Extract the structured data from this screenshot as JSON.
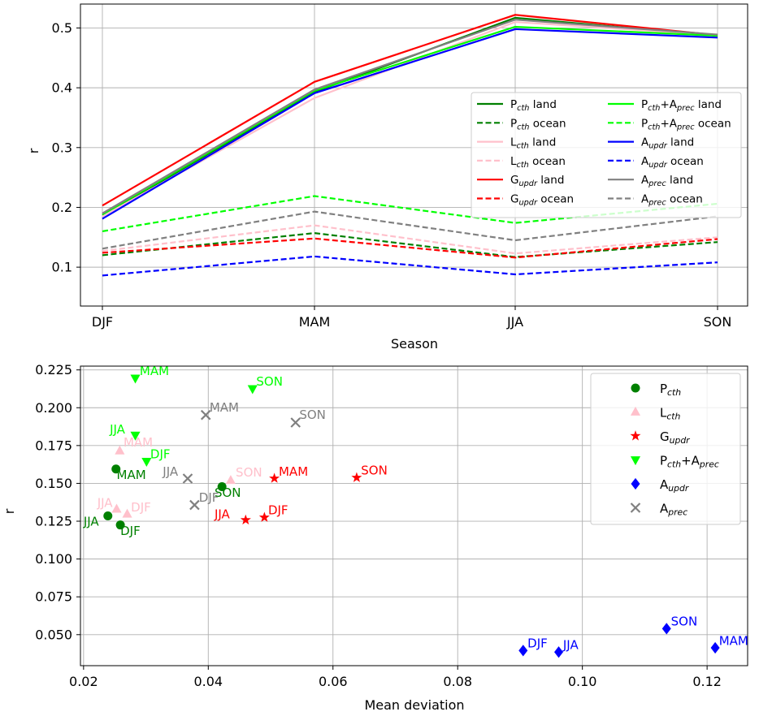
{
  "chart_data": [
    {
      "type": "line",
      "xlabel": "Season",
      "ylabel": "r",
      "categories": [
        "DJF",
        "MAM",
        "JJA",
        "SON"
      ],
      "ylim": [
        0.035,
        0.54
      ],
      "yticks": [
        "0.1",
        "0.2",
        "0.3",
        "0.4",
        "0.5"
      ],
      "ytick_values": [
        0.1,
        0.2,
        0.3,
        0.4,
        0.5
      ],
      "grid": true,
      "legend_position": "right, inside plot",
      "series": [
        {
          "base": "P",
          "sub": "cth",
          "mid": "",
          "base2": "",
          "sub2": "",
          "tail": " land",
          "color": "#008000",
          "dash": false,
          "values": [
            0.186,
            0.393,
            0.517,
            0.487
          ]
        },
        {
          "base": "P",
          "sub": "cth",
          "mid": "",
          "base2": "",
          "sub2": "",
          "tail": " ocean",
          "color": "#008000",
          "dash": true,
          "values": [
            0.12,
            0.157,
            0.117,
            0.142
          ]
        },
        {
          "base": "L",
          "sub": "cth",
          "mid": "",
          "base2": "",
          "sub2": "",
          "tail": " land",
          "color": "#ffc0cb",
          "dash": false,
          "values": [
            0.185,
            0.383,
            0.51,
            0.488
          ]
        },
        {
          "base": "L",
          "sub": "cth",
          "mid": "",
          "base2": "",
          "sub2": "",
          "tail": " ocean",
          "color": "#ffc0cb",
          "dash": true,
          "values": [
            0.127,
            0.17,
            0.123,
            0.15
          ]
        },
        {
          "base": "G",
          "sub": "updr",
          "mid": "",
          "base2": "",
          "sub2": "",
          "tail": " land",
          "color": "#ff0000",
          "dash": false,
          "values": [
            0.203,
            0.41,
            0.522,
            0.488
          ]
        },
        {
          "base": "G",
          "sub": "updr",
          "mid": "",
          "base2": "",
          "sub2": "",
          "tail": " ocean",
          "color": "#ff0000",
          "dash": true,
          "values": [
            0.124,
            0.148,
            0.116,
            0.147
          ]
        },
        {
          "base": "P",
          "sub": "cth",
          "mid": "+",
          "base2": "A",
          "sub2": "prec",
          "tail": " land",
          "color": "#00ff00",
          "dash": false,
          "values": [
            0.188,
            0.395,
            0.502,
            0.487
          ]
        },
        {
          "base": "P",
          "sub": "cth",
          "mid": "+",
          "base2": "A",
          "sub2": "prec",
          "tail": " ocean",
          "color": "#00ff00",
          "dash": true,
          "values": [
            0.16,
            0.219,
            0.174,
            0.206
          ]
        },
        {
          "base": "A",
          "sub": "updr",
          "mid": "",
          "base2": "",
          "sub2": "",
          "tail": " land",
          "color": "#0000ff",
          "dash": false,
          "values": [
            0.181,
            0.391,
            0.498,
            0.484
          ]
        },
        {
          "base": "A",
          "sub": "updr",
          "mid": "",
          "base2": "",
          "sub2": "",
          "tail": " ocean",
          "color": "#0000ff",
          "dash": true,
          "values": [
            0.086,
            0.118,
            0.088,
            0.108
          ]
        },
        {
          "base": "A",
          "sub": "prec",
          "mid": "",
          "base2": "",
          "sub2": "",
          "tail": " land",
          "color": "#808080",
          "dash": false,
          "values": [
            0.19,
            0.397,
            0.514,
            0.489
          ]
        },
        {
          "base": "A",
          "sub": "prec",
          "mid": "",
          "base2": "",
          "sub2": "",
          "tail": " ocean",
          "color": "#808080",
          "dash": true,
          "values": [
            0.131,
            0.193,
            0.145,
            0.185
          ]
        }
      ]
    },
    {
      "type": "scatter",
      "xlabel": "Mean deviation",
      "ylabel": "r",
      "xlim": [
        0.0195,
        0.1265
      ],
      "ylim": [
        0.0295,
        0.2275
      ],
      "xticks": [
        "0.02",
        "0.04",
        "0.06",
        "0.08",
        "0.10",
        "0.12"
      ],
      "xtick_values": [
        0.02,
        0.04,
        0.06,
        0.08,
        0.1,
        0.12
      ],
      "yticks": [
        "0.050",
        "0.075",
        "0.100",
        "0.125",
        "0.150",
        "0.175",
        "0.200",
        "0.225"
      ],
      "ytick_values": [
        0.05,
        0.075,
        0.1,
        0.125,
        0.15,
        0.175,
        0.2,
        0.225
      ],
      "grid": true,
      "legend_position": "top-right",
      "series": [
        {
          "base": "P",
          "sub": "cth",
          "mid": "",
          "base2": "",
          "sub2": "",
          "color": "#008000",
          "marker": "circle",
          "points": [
            {
              "label": "DJF",
              "x": 0.0259,
              "y": 0.1225,
              "lx": 0.0259,
              "ly": 0.116
            },
            {
              "label": "MAM",
              "x": 0.0252,
              "y": 0.1595,
              "lx": 0.0253,
              "ly": 0.153
            },
            {
              "label": "JJA",
              "x": 0.0239,
              "y": 0.1285,
              "lx": 0.02,
              "ly": 0.122
            },
            {
              "label": "SON",
              "x": 0.0422,
              "y": 0.1478,
              "lx": 0.041,
              "ly": 0.141
            }
          ]
        },
        {
          "base": "L",
          "sub": "cth",
          "mid": "",
          "base2": "",
          "sub2": "",
          "color": "#ffc0cb",
          "marker": "triangle-up",
          "points": [
            {
              "label": "DJF",
              "x": 0.027,
              "y": 0.1297,
              "lx": 0.0276,
              "ly": 0.1315
            },
            {
              "label": "MAM",
              "x": 0.0258,
              "y": 0.1715,
              "lx": 0.0264,
              "ly": 0.1745
            },
            {
              "label": "JJA",
              "x": 0.0253,
              "y": 0.133,
              "lx": 0.0222,
              "ly": 0.1345
            },
            {
              "label": "SON",
              "x": 0.0436,
              "y": 0.152,
              "lx": 0.0444,
              "ly": 0.1545
            }
          ]
        },
        {
          "base": "G",
          "sub": "updr",
          "mid": "",
          "base2": "",
          "sub2": "",
          "color": "#ff0000",
          "marker": "star",
          "points": [
            {
              "label": "DJF",
              "x": 0.049,
              "y": 0.1275,
              "lx": 0.0496,
              "ly": 0.1295
            },
            {
              "label": "MAM",
              "x": 0.0506,
              "y": 0.1533,
              "lx": 0.0513,
              "ly": 0.155
            },
            {
              "label": "JJA",
              "x": 0.046,
              "y": 0.1258,
              "lx": 0.041,
              "ly": 0.127
            },
            {
              "label": "SON",
              "x": 0.0638,
              "y": 0.1538,
              "lx": 0.0645,
              "ly": 0.156
            }
          ]
        },
        {
          "base": "P",
          "sub": "cth",
          "mid": "+",
          "base2": "A",
          "sub2": "prec",
          "color": "#00ff00",
          "marker": "triangle-down",
          "points": [
            {
              "label": "DJF",
              "x": 0.0301,
              "y": 0.1645,
              "lx": 0.0307,
              "ly": 0.1665
            },
            {
              "label": "MAM",
              "x": 0.0283,
              "y": 0.2195,
              "lx": 0.029,
              "ly": 0.2215
            },
            {
              "label": "JJA",
              "x": 0.0283,
              "y": 0.1818,
              "lx": 0.0242,
              "ly": 0.183
            },
            {
              "label": "SON",
              "x": 0.0471,
              "y": 0.2125,
              "lx": 0.0477,
              "ly": 0.2145
            }
          ]
        },
        {
          "base": "A",
          "sub": "updr",
          "mid": "",
          "base2": "",
          "sub2": "",
          "color": "#0000ff",
          "marker": "diamond",
          "points": [
            {
              "label": "DJF",
              "x": 0.0905,
              "y": 0.0395,
              "lx": 0.0912,
              "ly": 0.0415
            },
            {
              "label": "MAM",
              "x": 0.1213,
              "y": 0.0413,
              "lx": 0.1219,
              "ly": 0.0432
            },
            {
              "label": "JJA",
              "x": 0.0962,
              "y": 0.0385,
              "lx": 0.0969,
              "ly": 0.0405
            },
            {
              "label": "SON",
              "x": 0.1135,
              "y": 0.054,
              "lx": 0.1142,
              "ly": 0.056
            }
          ]
        },
        {
          "base": "A",
          "sub": "prec",
          "mid": "",
          "base2": "",
          "sub2": "",
          "color": "#808080",
          "marker": "x",
          "points": [
            {
              "label": "DJF",
              "x": 0.0378,
              "y": 0.1357,
              "lx": 0.0385,
              "ly": 0.138
            },
            {
              "label": "MAM",
              "x": 0.0396,
              "y": 0.1952,
              "lx": 0.0402,
              "ly": 0.1975
            },
            {
              "label": "JJA",
              "x": 0.0367,
              "y": 0.1532,
              "lx": 0.0327,
              "ly": 0.155
            },
            {
              "label": "SON",
              "x": 0.054,
              "y": 0.1902,
              "lx": 0.0546,
              "ly": 0.1925
            }
          ]
        }
      ]
    }
  ]
}
